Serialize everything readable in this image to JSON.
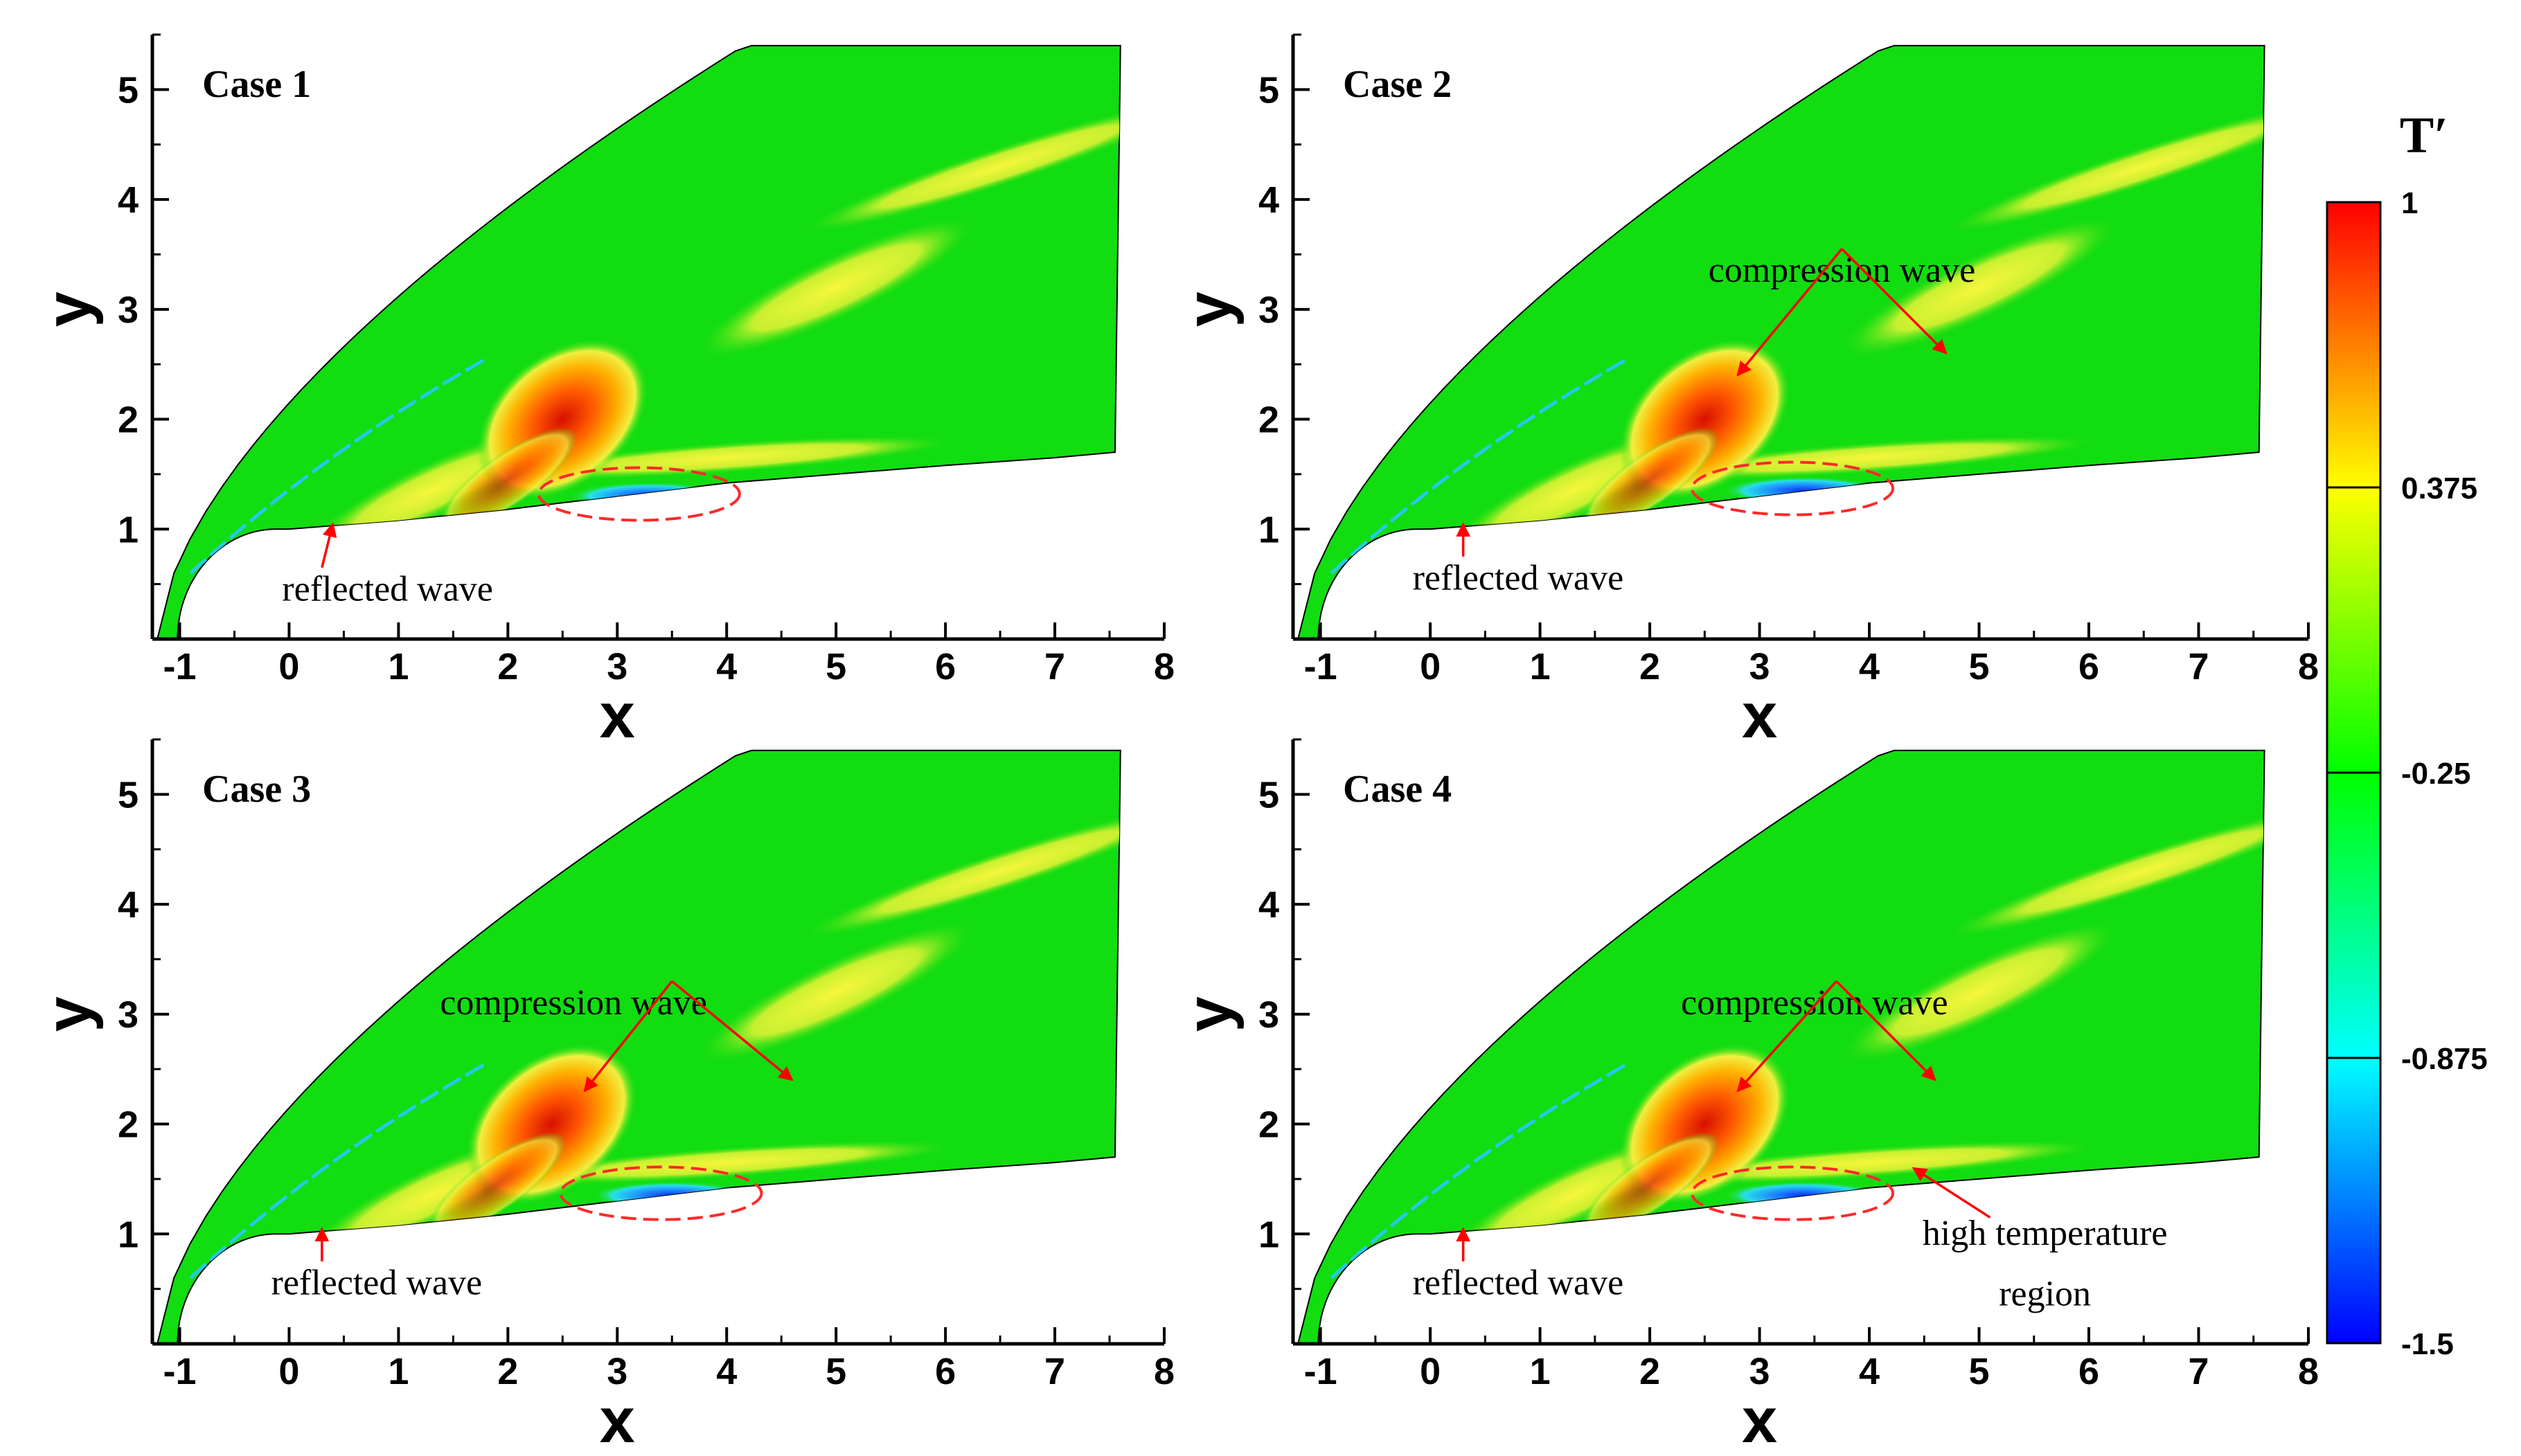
{
  "chart_data": [
    {
      "type": "heatmap",
      "title": "Case 1",
      "xlabel": "x",
      "ylabel": "y",
      "xlim": [
        -1.25,
        8
      ],
      "ylim": [
        0,
        5.5
      ],
      "xticks": [
        "-1",
        "0",
        "1",
        "2",
        "3",
        "4",
        "5",
        "6",
        "7",
        "8"
      ],
      "yticks": [
        "1",
        "2",
        "3",
        "4",
        "5"
      ],
      "annotations": [
        "reflected wave"
      ],
      "hot_spots": [
        {
          "x": 2.5,
          "y": 2.0,
          "value": 1.0
        },
        {
          "x": 3.3,
          "y": 1.3,
          "value": -1.4
        }
      ]
    },
    {
      "type": "heatmap",
      "title": "Case 2",
      "xlabel": "x",
      "ylabel": "y",
      "xlim": [
        -1.25,
        8
      ],
      "ylim": [
        0,
        5.5
      ],
      "xticks": [
        "-1",
        "0",
        "1",
        "2",
        "3",
        "4",
        "5",
        "6",
        "7",
        "8"
      ],
      "yticks": [
        "1",
        "2",
        "3",
        "4",
        "5"
      ],
      "annotations": [
        "compression wave",
        "reflected wave"
      ],
      "hot_spots": [
        {
          "x": 2.5,
          "y": 2.0,
          "value": 0.95
        },
        {
          "x": 3.4,
          "y": 1.35,
          "value": -1.4
        }
      ]
    },
    {
      "type": "heatmap",
      "title": "Case 3",
      "xlabel": "x",
      "ylabel": "y",
      "xlim": [
        -1.25,
        8
      ],
      "ylim": [
        0,
        5.5
      ],
      "xticks": [
        "-1",
        "0",
        "1",
        "2",
        "3",
        "4",
        "5",
        "6",
        "7",
        "8"
      ],
      "yticks": [
        "1",
        "2",
        "3",
        "4",
        "5"
      ],
      "annotations": [
        "compression wave",
        "reflected wave"
      ],
      "hot_spots": [
        {
          "x": 2.4,
          "y": 2.0,
          "value": 0.95
        },
        {
          "x": 3.5,
          "y": 1.35,
          "value": -1.4
        }
      ]
    },
    {
      "type": "heatmap",
      "title": "Case 4",
      "xlabel": "x",
      "ylabel": "y",
      "xlim": [
        -1.25,
        8
      ],
      "ylim": [
        0,
        5.5
      ],
      "xticks": [
        "-1",
        "0",
        "1",
        "2",
        "3",
        "4",
        "5",
        "6",
        "7",
        "8"
      ],
      "yticks": [
        "1",
        "2",
        "3",
        "4",
        "5"
      ],
      "annotations": [
        "compression wave",
        "reflected wave",
        "high temperature",
        "region"
      ],
      "hot_spots": [
        {
          "x": 2.5,
          "y": 2.0,
          "value": 0.95
        },
        {
          "x": 3.4,
          "y": 1.35,
          "value": -1.4
        }
      ]
    }
  ],
  "colorbar": {
    "title": "T′",
    "min": -1.5,
    "max": 1,
    "tick_labels": [
      "1",
      "0.375",
      "-0.25",
      "-0.875",
      "-1.5"
    ],
    "tick_values": [
      1,
      0.375,
      -0.25,
      -0.875,
      -1.5
    ],
    "colors": [
      "#0000ff",
      "#00ffff",
      "#00ff00",
      "#ffff00",
      "#ff0000"
    ]
  },
  "colors": {
    "field": "#11dd11",
    "hot": "#e41a00",
    "warm": "#f5f53a",
    "cold": "#1e7bff",
    "annotation_arrow": "#ff0000",
    "ellipse": "#ff2a2a"
  }
}
